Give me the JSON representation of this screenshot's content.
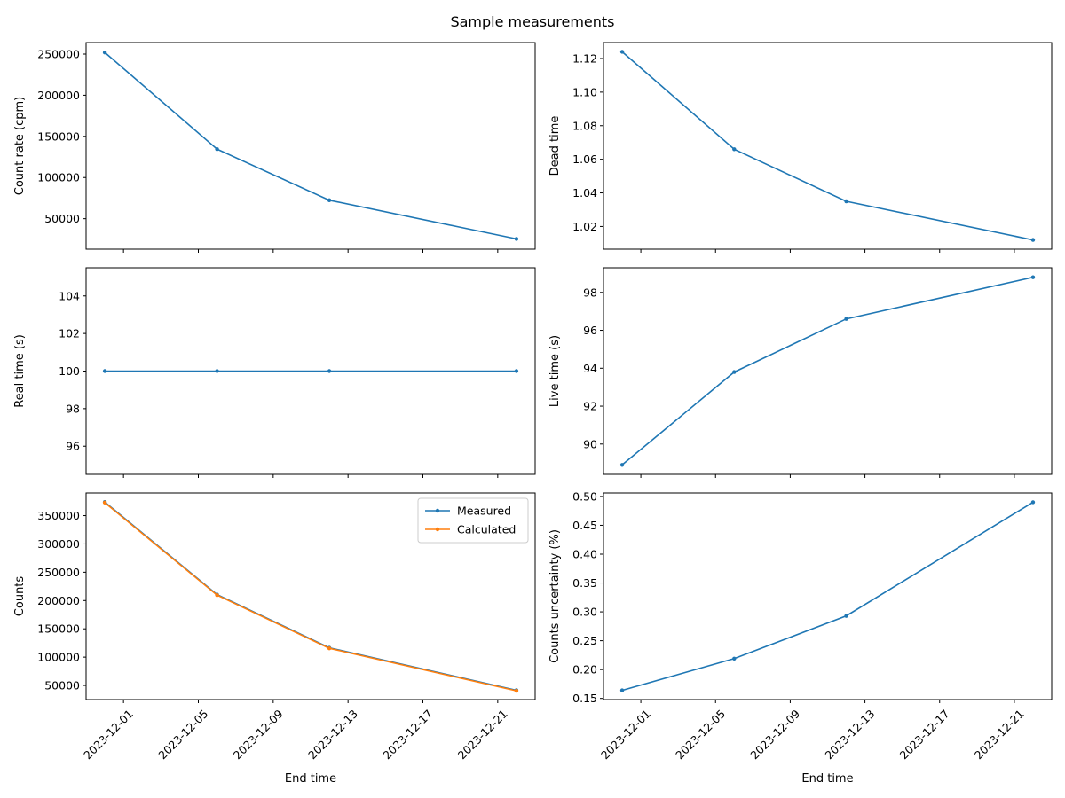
{
  "figure": {
    "title": "Sample measurements"
  },
  "colors": {
    "measured": "#1f77b4",
    "calculated": "#ff7f0e"
  },
  "chart_data": [
    {
      "type": "line",
      "position": "top-left",
      "title": "",
      "xlabel": "",
      "ylabel": "Count rate (cpm)",
      "x": [
        "2023-11-30",
        "2023-12-06",
        "2023-12-12",
        "2023-12-22"
      ],
      "series": [
        {
          "values": [
            252000,
            134500,
            72500,
            25500
          ]
        }
      ],
      "ylim": [
        13000,
        264000
      ],
      "yticks": [
        50000,
        100000,
        150000,
        200000,
        250000
      ],
      "ytick_labels": [
        "50000",
        "100000",
        "150000",
        "200000",
        "250000"
      ],
      "xlim": [
        "2023-11-29",
        "2023-12-23"
      ],
      "xticks": [
        "2023-12-01",
        "2023-12-05",
        "2023-12-09",
        "2023-12-13",
        "2023-12-17",
        "2023-12-21"
      ],
      "xtick_labels": [],
      "grid": false
    },
    {
      "type": "line",
      "position": "top-right",
      "title": "",
      "xlabel": "",
      "ylabel": "Dead time",
      "x": [
        "2023-11-30",
        "2023-12-06",
        "2023-12-12",
        "2023-12-22"
      ],
      "series": [
        {
          "values": [
            1.124,
            1.066,
            1.035,
            1.012
          ]
        }
      ],
      "ylim": [
        1.0065,
        1.1295
      ],
      "yticks": [
        1.02,
        1.04,
        1.06,
        1.08,
        1.1,
        1.12
      ],
      "ytick_labels": [
        "1.02",
        "1.04",
        "1.06",
        "1.08",
        "1.10",
        "1.12"
      ],
      "xlim": [
        "2023-11-29",
        "2023-12-23"
      ],
      "xticks": [
        "2023-12-01",
        "2023-12-05",
        "2023-12-09",
        "2023-12-13",
        "2023-12-17",
        "2023-12-21"
      ],
      "xtick_labels": [],
      "grid": false
    },
    {
      "type": "line",
      "position": "middle-left",
      "title": "",
      "xlabel": "",
      "ylabel": "Real time (s)",
      "x": [
        "2023-11-30",
        "2023-12-06",
        "2023-12-12",
        "2023-12-22"
      ],
      "series": [
        {
          "values": [
            100,
            100,
            100,
            100
          ]
        }
      ],
      "ylim": [
        94.5,
        105.5
      ],
      "yticks": [
        96,
        98,
        100,
        102,
        104
      ],
      "ytick_labels": [
        "96",
        "98",
        "100",
        "102",
        "104"
      ],
      "xlim": [
        "2023-11-29",
        "2023-12-23"
      ],
      "xticks": [
        "2023-12-01",
        "2023-12-05",
        "2023-12-09",
        "2023-12-13",
        "2023-12-17",
        "2023-12-21"
      ],
      "xtick_labels": [],
      "grid": false
    },
    {
      "type": "line",
      "position": "middle-right",
      "title": "",
      "xlabel": "",
      "ylabel": "Live time (s)",
      "x": [
        "2023-11-30",
        "2023-12-06",
        "2023-12-12",
        "2023-12-22"
      ],
      "series": [
        {
          "values": [
            88.9,
            93.8,
            96.6,
            98.8
          ]
        }
      ],
      "ylim": [
        88.4,
        99.3
      ],
      "yticks": [
        90,
        92,
        94,
        96,
        98
      ],
      "ytick_labels": [
        "90",
        "92",
        "94",
        "96",
        "98"
      ],
      "xlim": [
        "2023-11-29",
        "2023-12-23"
      ],
      "xticks": [
        "2023-12-01",
        "2023-12-05",
        "2023-12-09",
        "2023-12-13",
        "2023-12-17",
        "2023-12-21"
      ],
      "xtick_labels": [],
      "grid": false
    },
    {
      "type": "line",
      "position": "bottom-left",
      "title": "",
      "xlabel": "End time",
      "ylabel": "Counts",
      "x": [
        "2023-11-30",
        "2023-12-06",
        "2023-12-12",
        "2023-12-22"
      ],
      "series": [
        {
          "name": "Measured",
          "values": [
            374000,
            210500,
            116500,
            41500
          ]
        },
        {
          "name": "Calculated",
          "values": [
            373000,
            209500,
            115500,
            40500
          ]
        }
      ],
      "legend": "top-right",
      "ylim": [
        25000,
        390000
      ],
      "yticks": [
        50000,
        100000,
        150000,
        200000,
        250000,
        300000,
        350000
      ],
      "ytick_labels": [
        "50000",
        "100000",
        "150000",
        "200000",
        "250000",
        "300000",
        "350000"
      ],
      "xlim": [
        "2023-11-29",
        "2023-12-23"
      ],
      "xticks": [
        "2023-12-01",
        "2023-12-05",
        "2023-12-09",
        "2023-12-13",
        "2023-12-17",
        "2023-12-21"
      ],
      "xtick_labels": [
        "2023-12-01",
        "2023-12-05",
        "2023-12-09",
        "2023-12-13",
        "2023-12-17",
        "2023-12-21"
      ],
      "grid": false
    },
    {
      "type": "line",
      "position": "bottom-right",
      "title": "",
      "xlabel": "End time",
      "ylabel": "Counts uncertainty (%)",
      "x": [
        "2023-11-30",
        "2023-12-06",
        "2023-12-12",
        "2023-12-22"
      ],
      "series": [
        {
          "values": [
            0.164,
            0.219,
            0.293,
            0.49
          ]
        }
      ],
      "ylim": [
        0.148,
        0.506
      ],
      "yticks": [
        0.15,
        0.2,
        0.25,
        0.3,
        0.35,
        0.4,
        0.45,
        0.5
      ],
      "ytick_labels": [
        "0.15",
        "0.20",
        "0.25",
        "0.30",
        "0.35",
        "0.40",
        "0.45",
        "0.50"
      ],
      "xlim": [
        "2023-11-29",
        "2023-12-23"
      ],
      "xticks": [
        "2023-12-01",
        "2023-12-05",
        "2023-12-09",
        "2023-12-13",
        "2023-12-17",
        "2023-12-21"
      ],
      "xtick_labels": [
        "2023-12-01",
        "2023-12-05",
        "2023-12-09",
        "2023-12-13",
        "2023-12-17",
        "2023-12-21"
      ],
      "grid": false
    }
  ]
}
